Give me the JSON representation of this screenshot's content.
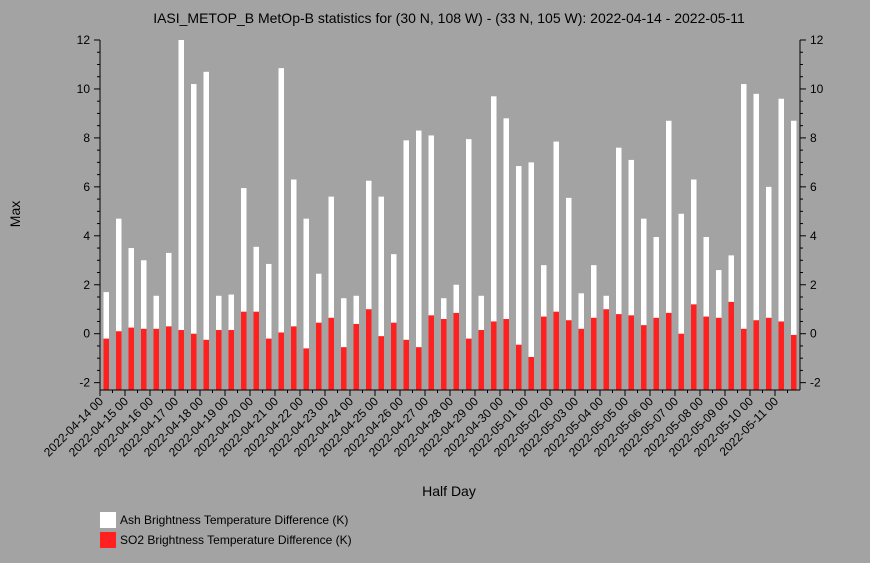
{
  "chart_data": {
    "type": "bar",
    "title": "IASI_METOP_B MetOp-B statistics for (30 N, 108 W) - (33 N, 105 W): 2022-04-14 - 2022-05-11",
    "xlabel": "Half Day",
    "ylabel": "Max",
    "ylim": [
      -2.3,
      12
    ],
    "yticks": [
      -2,
      0,
      2,
      4,
      6,
      8,
      10,
      12
    ],
    "grid": false,
    "legend_position": "bottom-left",
    "x_tick_labels": [
      "2022-04-14 00",
      "2022-04-15 00",
      "2022-04-16 00",
      "2022-04-17 00",
      "2022-04-18 00",
      "2022-04-19 00",
      "2022-04-20 00",
      "2022-04-21 00",
      "2022-04-22 00",
      "2022-04-23 00",
      "2022-04-24 00",
      "2022-04-25 00",
      "2022-04-26 00",
      "2022-04-27 00",
      "2022-04-28 00",
      "2022-04-29 00",
      "2022-04-30 00",
      "2022-05-01 00",
      "2022-05-02 00",
      "2022-05-03 00",
      "2022-05-04 00",
      "2022-05-05 00",
      "2022-05-06 00",
      "2022-05-07 00",
      "2022-05-08 00",
      "2022-05-09 00",
      "2022-05-10 00",
      "2022-05-11 00"
    ],
    "series": [
      {
        "name": "Ash Brightness Temperature Difference (K)",
        "color": "#ffffff",
        "values": [
          1.7,
          4.7,
          3.5,
          3.0,
          1.55,
          3.3,
          12.0,
          10.2,
          10.7,
          1.55,
          1.6,
          5.95,
          3.55,
          2.85,
          10.85,
          6.3,
          4.7,
          2.45,
          5.6,
          1.45,
          1.55,
          6.25,
          5.6,
          3.25,
          7.9,
          8.3,
          8.1,
          1.45,
          2.0,
          7.95,
          1.55,
          9.7,
          8.8,
          6.85,
          7.0,
          2.8,
          7.85,
          5.55,
          1.65,
          2.8,
          1.55,
          7.6,
          7.1,
          4.7,
          3.95,
          8.7,
          4.9,
          6.3,
          3.95,
          2.6,
          3.2,
          10.2,
          9.8,
          6.0,
          9.6,
          8.7
        ]
      },
      {
        "name": "SO2 Brightness Temperature Difference (K)",
        "color": "#ff2020",
        "values": [
          -0.2,
          0.1,
          0.25,
          0.2,
          0.2,
          0.3,
          0.15,
          0.0,
          -0.25,
          0.15,
          0.15,
          0.9,
          0.9,
          -0.2,
          0.05,
          0.3,
          -0.6,
          0.45,
          0.65,
          -0.55,
          0.4,
          1.0,
          -0.1,
          0.45,
          -0.25,
          -0.55,
          0.75,
          0.6,
          0.85,
          -0.2,
          0.15,
          0.5,
          0.6,
          -0.45,
          -0.95,
          0.7,
          0.9,
          0.55,
          0.2,
          0.65,
          1.0,
          0.8,
          0.75,
          0.35,
          0.65,
          0.85,
          0.0,
          1.2,
          0.7,
          0.65,
          1.3,
          0.2,
          0.55,
          0.65,
          0.5,
          -0.05
        ]
      }
    ]
  }
}
